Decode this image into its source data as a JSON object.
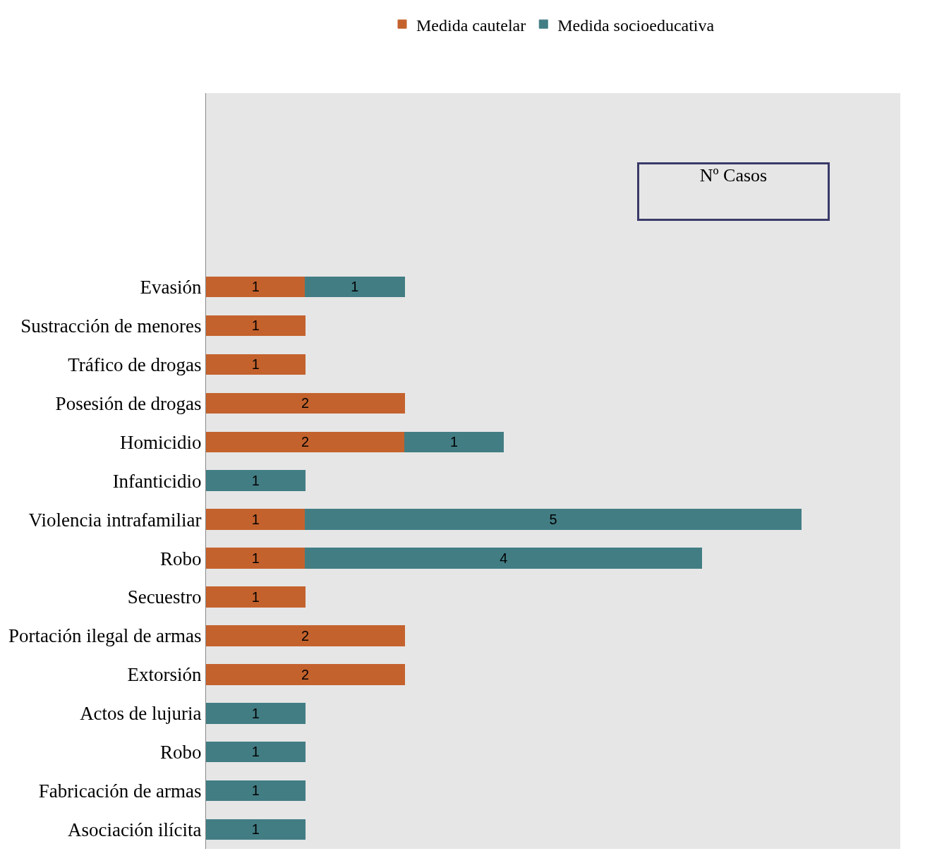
{
  "chart_data": {
    "type": "bar",
    "orientation": "horizontal",
    "stacked": true,
    "data_labels": true,
    "legend": "top",
    "grid": false,
    "tick_labels": "y",
    "xlim": [
      0,
      7
    ],
    "categories": [
      "Evasión",
      "Sustracción de menores",
      "Tráfico de drogas",
      "Posesión de drogas",
      "Homicidio",
      "Infanticidio",
      "Violencia intrafamiliar",
      "Robo",
      "Secuestro",
      "Portación ilegal de armas",
      "Extorsión",
      "Actos de lujuria",
      "Robo",
      "Fabricación de armas",
      "Asociación ilícita"
    ],
    "series": [
      {
        "name": "Medida cautelar",
        "color": "#c4622d",
        "values": [
          1,
          1,
          1,
          2,
          2,
          null,
          1,
          1,
          1,
          2,
          2,
          null,
          null,
          null,
          null
        ]
      },
      {
        "name": "Medida socioeducativa",
        "color": "#427d84",
        "values": [
          1,
          null,
          null,
          null,
          1,
          1,
          5,
          4,
          null,
          null,
          null,
          1,
          1,
          1,
          1
        ]
      }
    ],
    "annotations": [
      "Nº Casos"
    ]
  }
}
